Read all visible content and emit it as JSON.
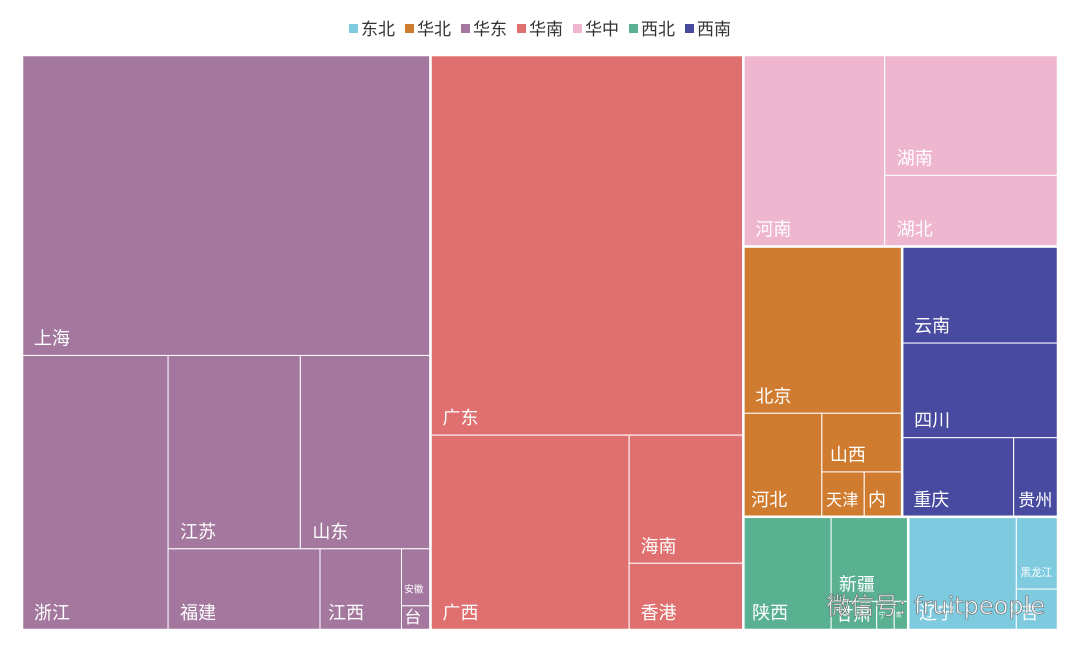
{
  "chart_data": {
    "type": "treemap",
    "series": [
      {
        "name": "华东",
        "color": "#a4789e",
        "labels": [
          "上海",
          "浙江",
          "江苏",
          "山东",
          "福建",
          "江西",
          "安徽",
          "台"
        ],
        "values": [
          122.4,
          40,
          25.5,
          25.1,
          12.3,
          6.6,
          1.65,
          0.7
        ]
      },
      {
        "name": "华南",
        "color": "#df706f",
        "labels": [
          "广东",
          "广西",
          "海南",
          "香港"
        ],
        "values": [
          118.6,
          38.6,
          14.6,
          7.6
        ]
      },
      {
        "name": "华中",
        "color": "#eeb7cf",
        "labels": [
          "河南",
          "湖南",
          "湖北"
        ],
        "values": [
          27,
          20.8,
          12.3
        ]
      },
      {
        "name": "华北",
        "color": "#d07c30",
        "labels": [
          "北京",
          "河北",
          "山西",
          "天津",
          "内"
        ],
        "values": [
          26.4,
          8.1,
          4.7,
          1.9,
          1.7
        ]
      },
      {
        "name": "西南",
        "color": "#474a9f",
        "labels": [
          "云南",
          "四川",
          "重庆",
          "贵州"
        ],
        "values": [
          15,
          14.7,
          8.8,
          3.5
        ]
      },
      {
        "name": "西北",
        "color": "#5ab191",
        "labels": [
          "陕西",
          "新疆",
          "甘肃",
          "宁",
          "青"
        ],
        "values": [
          9.9,
          6.5,
          1.3,
          0.5,
          0.4
        ]
      },
      {
        "name": "东北",
        "color": "#7ecadf",
        "labels": [
          "辽宁",
          "黑龙江",
          "吉"
        ],
        "values": [
          12.2,
          3,
          1.7
        ]
      }
    ],
    "legend_order": [
      6,
      3,
      0,
      1,
      2,
      5,
      4
    ],
    "watermark": "微信号: fruitpeople"
  }
}
